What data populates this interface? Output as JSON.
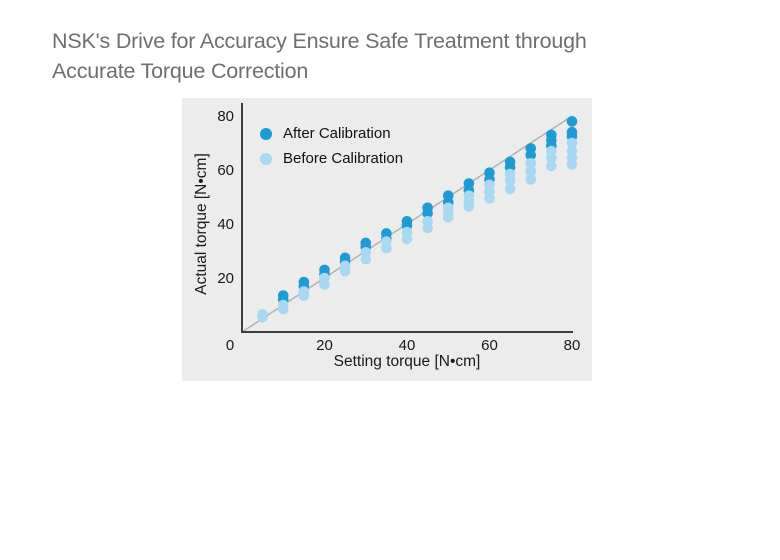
{
  "page": {
    "title": "NSK's Drive for Accuracy Ensure Safe Treatment through\nAccurate Torque Correction",
    "title_color": "#6f6f6f",
    "background_color": "#ffffff"
  },
  "chart_data": {
    "type": "scatter",
    "title": "",
    "xlabel": "Setting torque [N•cm]",
    "ylabel": "Actual torque [N•cm]",
    "xlim": [
      0,
      80
    ],
    "ylim": [
      0,
      80
    ],
    "x_ticks": [
      0,
      20,
      40,
      60,
      80
    ],
    "y_ticks": [
      20,
      40,
      60,
      80
    ],
    "grid": false,
    "panel_color": "#ececec",
    "axis_color": "#3d3d3d",
    "tick_label_color": "#1a1a1a",
    "legend_position": "top-left",
    "reference_line": {
      "from": [
        0,
        0
      ],
      "to": [
        80,
        80
      ],
      "color": "#b1b1b1"
    },
    "series": [
      {
        "name": "After Calibration",
        "color": "#1e9ad5",
        "points": [
          [
            5,
            6
          ],
          [
            10,
            13.5
          ],
          [
            10,
            12
          ],
          [
            15,
            18.5
          ],
          [
            15,
            17
          ],
          [
            20,
            23
          ],
          [
            20,
            21.5
          ],
          [
            25,
            27.5
          ],
          [
            25,
            26
          ],
          [
            30,
            33
          ],
          [
            30,
            31.5
          ],
          [
            35,
            36.5
          ],
          [
            35,
            34.5
          ],
          [
            40,
            41
          ],
          [
            40,
            39.5
          ],
          [
            45,
            46
          ],
          [
            45,
            44
          ],
          [
            50,
            50.5
          ],
          [
            50,
            48
          ],
          [
            55,
            55
          ],
          [
            55,
            52.5
          ],
          [
            60,
            59
          ],
          [
            60,
            56.5
          ],
          [
            65,
            63
          ],
          [
            65,
            61
          ],
          [
            70,
            68
          ],
          [
            70,
            65.5
          ],
          [
            75,
            73
          ],
          [
            75,
            71
          ],
          [
            75,
            69
          ],
          [
            80,
            78
          ],
          [
            80,
            74
          ],
          [
            80,
            72.5
          ]
        ]
      },
      {
        "name": "Before Calibration",
        "color": "#a9d8f2",
        "points": [
          [
            5,
            6.5
          ],
          [
            5,
            5.5
          ],
          [
            10,
            10
          ],
          [
            10,
            8.5
          ],
          [
            15,
            15
          ],
          [
            15,
            13.5
          ],
          [
            20,
            20
          ],
          [
            20,
            17.5
          ],
          [
            25,
            24.5
          ],
          [
            25,
            22.5
          ],
          [
            30,
            29.5
          ],
          [
            30,
            27
          ],
          [
            35,
            33.5
          ],
          [
            35,
            31
          ],
          [
            40,
            37
          ],
          [
            40,
            34.5
          ],
          [
            45,
            41
          ],
          [
            45,
            38.5
          ],
          [
            50,
            46
          ],
          [
            50,
            44
          ],
          [
            50,
            42.5
          ],
          [
            55,
            50.5
          ],
          [
            55,
            48.5
          ],
          [
            55,
            46.5
          ],
          [
            60,
            54.5
          ],
          [
            60,
            52
          ],
          [
            60,
            49.5
          ],
          [
            65,
            58.5
          ],
          [
            65,
            56
          ],
          [
            65,
            53
          ],
          [
            70,
            62.5
          ],
          [
            70,
            59.5
          ],
          [
            70,
            56.5
          ],
          [
            75,
            67
          ],
          [
            75,
            64.5
          ],
          [
            75,
            61.5
          ],
          [
            80,
            70
          ],
          [
            80,
            67
          ],
          [
            80,
            64.5
          ],
          [
            80,
            62
          ]
        ]
      }
    ]
  }
}
